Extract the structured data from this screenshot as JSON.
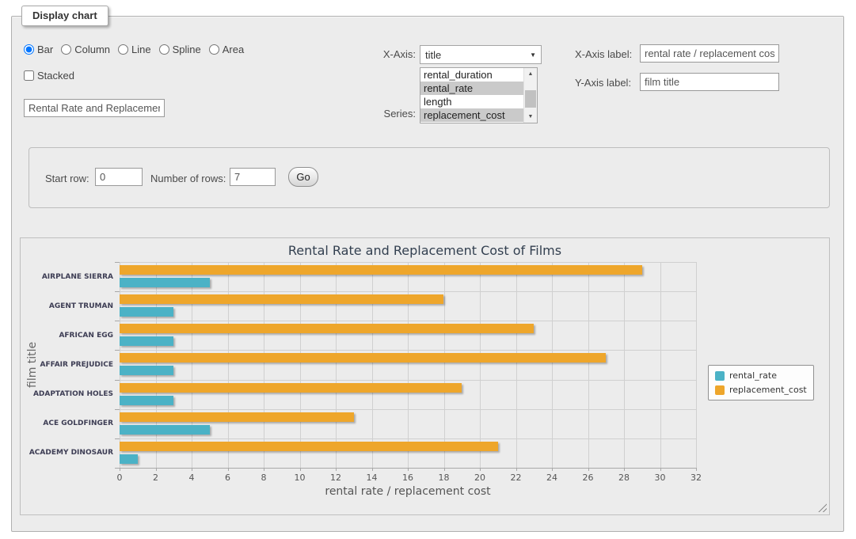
{
  "panel": {
    "legend": "Display chart"
  },
  "chart_type": {
    "options": [
      {
        "label": "Bar",
        "selected": true
      },
      {
        "label": "Column",
        "selected": false
      },
      {
        "label": "Line",
        "selected": false
      },
      {
        "label": "Spline",
        "selected": false
      },
      {
        "label": "Area",
        "selected": false
      }
    ]
  },
  "stacked": {
    "label": "Stacked",
    "checked": false
  },
  "title_input": {
    "value": "Rental Rate and Replacement Cost of Films"
  },
  "x_axis": {
    "label": "X-Axis:",
    "value": "title"
  },
  "series_select": {
    "label": "Series:",
    "options": [
      {
        "label": "rental_duration",
        "selected": false
      },
      {
        "label": "rental_rate",
        "selected": true
      },
      {
        "label": "length",
        "selected": false
      },
      {
        "label": "replacement_cost",
        "selected": true
      }
    ]
  },
  "x_axis_label": {
    "label": "X-Axis label:",
    "value": "rental rate / replacement cost"
  },
  "y_axis_label": {
    "label": "Y-Axis label:",
    "value": "film title"
  },
  "row_controls": {
    "start_row_label": "Start row:",
    "start_row_value": "0",
    "num_rows_label": "Number of rows:",
    "num_rows_value": "7",
    "go_label": "Go"
  },
  "chart_data": {
    "type": "bar",
    "title": "Rental Rate and Replacement Cost of Films",
    "categories": [
      "AIRPLANE SIERRA",
      "AGENT TRUMAN",
      "AFRICAN EGG",
      "AFFAIR PREJUDICE",
      "ADAPTATION HOLES",
      "ACE GOLDFINGER",
      "ACADEMY DINOSAUR"
    ],
    "series": [
      {
        "name": "rental_rate",
        "color": "#4bb2c6",
        "values": [
          4.99,
          2.99,
          2.99,
          2.99,
          2.99,
          4.99,
          0.99
        ]
      },
      {
        "name": "replacement_cost",
        "color": "#eea62b",
        "values": [
          28.99,
          17.99,
          22.99,
          26.99,
          18.99,
          12.99,
          20.99
        ]
      }
    ],
    "bar_order_top_to_bottom": [
      "replacement_cost",
      "rental_rate"
    ],
    "xlabel": "rental rate / replacement cost",
    "ylabel": "film title",
    "xlim": [
      0,
      32
    ],
    "x_tick_step": 2,
    "grid": true,
    "legend_position": "right"
  }
}
